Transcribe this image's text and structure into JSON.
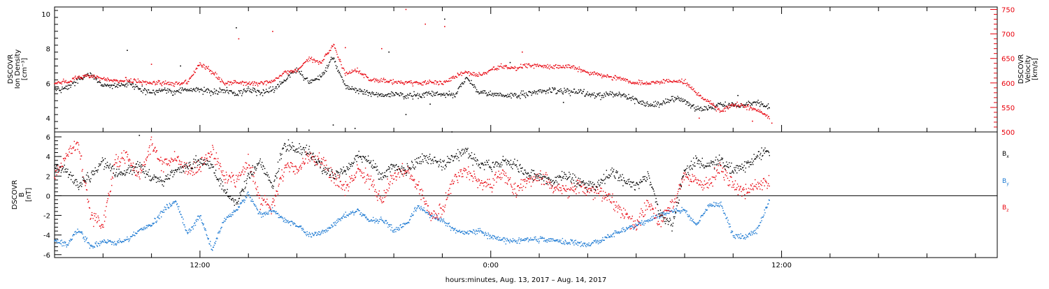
{
  "chart_data": [
    {
      "type": "scatter",
      "panel": "top",
      "ylabel_left": [
        "DSCOVR",
        "Ion Density",
        "[cm⁻³]"
      ],
      "ylabel_right": [
        "DSCOVR",
        "Velocity",
        "[km/s]"
      ],
      "ylim_left": [
        3.2,
        10.4
      ],
      "ylim_right": [
        500,
        755
      ],
      "yticks_left": [
        "4",
        "6",
        "8",
        "10"
      ],
      "yticks_left_values": [
        4,
        6,
        8,
        10
      ],
      "yticks_right": [
        "500",
        "550",
        "600",
        "650",
        "700",
        "750"
      ],
      "yticks_right_values": [
        500,
        550,
        600,
        650,
        700,
        750
      ],
      "series": [
        {
          "name": "Ion Density",
          "color": "#000000",
          "axis": "left",
          "x": [
            0,
            0.5,
            1,
            1.5,
            2,
            2.5,
            3,
            3.5,
            4,
            4.5,
            5,
            5.5,
            6,
            6.5,
            7,
            7.5,
            8,
            8.5,
            9,
            9.5,
            10,
            10.5,
            11,
            11.5,
            12,
            12.5,
            13,
            13.5,
            14,
            14.5,
            15,
            15.5,
            16,
            16.5,
            17,
            17.5,
            18,
            18.5,
            19,
            19.5,
            20,
            20.5,
            21,
            21.5,
            22,
            22.5,
            23,
            23.5,
            24,
            24.5,
            25,
            25.5,
            26,
            26.5,
            27,
            27.5,
            28,
            28.5,
            29,
            29.5
          ],
          "values": [
            5.6,
            5.7,
            6.2,
            6.5,
            5.9,
            5.8,
            6.0,
            5.7,
            5.5,
            5.6,
            5.5,
            5.7,
            5.6,
            5.5,
            5.6,
            5.4,
            5.6,
            5.5,
            5.6,
            6.2,
            6.8,
            6.0,
            6.4,
            7.5,
            5.8,
            5.6,
            5.4,
            5.3,
            5.4,
            5.3,
            5.3,
            5.4,
            5.4,
            5.3,
            6.3,
            5.5,
            5.4,
            5.3,
            5.3,
            5.4,
            5.5,
            5.6,
            5.5,
            5.5,
            5.4,
            5.3,
            5.4,
            5.3,
            5.0,
            4.8,
            4.8,
            5.1,
            5.0,
            4.5,
            4.6,
            4.8,
            4.7,
            4.8,
            4.9,
            4.6
          ]
        },
        {
          "name": "Velocity",
          "color": "#e8000b",
          "axis": "right",
          "x": [
            0,
            0.5,
            1,
            1.5,
            2,
            2.5,
            3,
            3.5,
            4,
            4.5,
            5,
            5.5,
            6,
            6.5,
            7,
            7.5,
            8,
            8.5,
            9,
            9.5,
            10,
            10.5,
            11,
            11.5,
            12,
            12.5,
            13,
            13.5,
            14,
            14.5,
            15,
            15.5,
            16,
            16.5,
            17,
            17.5,
            18,
            18.5,
            19,
            19.5,
            20,
            20.5,
            21,
            21.5,
            22,
            22.5,
            23,
            23.5,
            24,
            24.5,
            25,
            25.5,
            26,
            26.5,
            27,
            27.5,
            28,
            28.5,
            29,
            29.5
          ],
          "values": [
            600,
            603,
            612,
            615,
            608,
            605,
            606,
            602,
            600,
            600,
            598,
            602,
            640,
            622,
            600,
            602,
            598,
            600,
            602,
            622,
            625,
            650,
            640,
            678,
            618,
            626,
            607,
            604,
            602,
            600,
            600,
            602,
            601,
            612,
            622,
            615,
            628,
            633,
            630,
            636,
            635,
            632,
            634,
            630,
            622,
            616,
            612,
            606,
            600,
            600,
            602,
            604,
            603,
            578,
            562,
            540,
            556,
            552,
            545,
            530
          ]
        },
        {
          "name": "Ion Density",
          "color": "#000000",
          "axis": "left",
          "points": [
            [
              3.0,
              7.9
            ],
            [
              3.5,
              3.0
            ],
            [
              7.5,
              9.2
            ],
            [
              10.5,
              3.3
            ],
            [
              12.4,
              3.4
            ],
            [
              13.8,
              7.8
            ],
            [
              14.5,
              4.2
            ],
            [
              15.5,
              4.8
            ],
            [
              16.4,
              3.2
            ],
            [
              16.1,
              9.7
            ],
            [
              11.5,
              3.6
            ],
            [
              18.8,
              7.2
            ],
            [
              5.2,
              7.0
            ],
            [
              21.0,
              4.9
            ],
            [
              28.2,
              5.3
            ]
          ]
        },
        {
          "name": "Velocity",
          "color": "#e8000b",
          "axis": "right",
          "points": [
            [
              7.6,
              690
            ],
            [
              9.0,
              705
            ],
            [
              12.0,
              672
            ],
            [
              13.5,
              670
            ],
            [
              14.5,
              750
            ],
            [
              15.3,
              720
            ],
            [
              16.1,
              715
            ],
            [
              19.3,
              663
            ],
            [
              4.0,
              638
            ],
            [
              28.8,
              522
            ],
            [
              26.6,
              528
            ],
            [
              29.6,
              518
            ]
          ]
        }
      ]
    },
    {
      "type": "scatter",
      "panel": "bottom",
      "ylabel_left": [
        "DSCOVR",
        "B",
        "[nT]"
      ],
      "ylim": [
        -6.3,
        6.5
      ],
      "yticks": [
        "-6",
        "-4",
        "-2",
        "0",
        "2",
        "4",
        "6"
      ],
      "ytick_values": [
        -6,
        -4,
        -2,
        0,
        2,
        4,
        6
      ],
      "zero_line": true,
      "legend": [
        "Bx",
        "By",
        "Bz"
      ],
      "legend_position": "right",
      "series": [
        {
          "name": "Bx",
          "color": "#000000",
          "x": [
            0,
            0.5,
            1,
            1.5,
            2,
            2.5,
            3,
            3.5,
            4,
            4.5,
            5,
            5.5,
            6,
            6.5,
            7,
            7.5,
            8,
            8.5,
            9,
            9.5,
            10,
            10.5,
            11,
            11.5,
            12,
            12.5,
            13,
            13.5,
            14,
            14.5,
            15,
            15.5,
            16,
            16.5,
            17,
            17.5,
            18,
            18.5,
            19,
            19.5,
            20,
            20.5,
            21,
            21.5,
            22,
            22.5,
            23,
            23.5,
            24,
            24.5,
            25,
            25.5,
            26,
            26.5,
            27,
            27.5,
            28,
            28.5,
            29,
            29.5
          ],
          "values": [
            3.0,
            2.5,
            1.0,
            2.0,
            3.5,
            2.2,
            2.5,
            3.0,
            2.0,
            1.5,
            2.5,
            3.0,
            3.5,
            3.0,
            0.5,
            -1.0,
            2.0,
            3.5,
            1.0,
            5.2,
            4.8,
            4.5,
            3.0,
            2.0,
            2.5,
            4.0,
            3.5,
            2.0,
            3.0,
            2.5,
            3.5,
            4.0,
            3.0,
            4.0,
            4.6,
            3.2,
            3.0,
            3.5,
            3.2,
            2.2,
            2.0,
            1.5,
            2.0,
            1.5,
            1.0,
            1.2,
            2.5,
            1.5,
            1.0,
            2.0,
            -2.0,
            -3.0,
            2.5,
            3.5,
            3.0,
            3.6,
            2.5,
            3.0,
            4.0,
            4.7
          ]
        },
        {
          "name": "By",
          "color": "#1a78d2",
          "x": [
            0,
            0.5,
            1,
            1.5,
            2,
            2.5,
            3,
            3.5,
            4,
            4.5,
            5,
            5.5,
            6,
            6.5,
            7,
            7.5,
            8,
            8.5,
            9,
            9.5,
            10,
            10.5,
            11,
            11.5,
            12,
            12.5,
            13,
            13.5,
            14,
            14.5,
            15,
            15.5,
            16,
            16.5,
            17,
            17.5,
            18,
            18.5,
            19,
            19.5,
            20,
            20.5,
            21,
            21.5,
            22,
            22.5,
            23,
            23.5,
            24,
            24.5,
            25,
            25.5,
            26,
            26.5,
            27,
            27.5,
            28,
            28.5,
            29,
            29.5
          ],
          "values": [
            -4.5,
            -5.0,
            -3.5,
            -5.2,
            -4.6,
            -4.8,
            -4.5,
            -3.5,
            -3.0,
            -1.5,
            -0.5,
            -4.0,
            -2.0,
            -5.5,
            -2.5,
            -1.5,
            0.2,
            -2.0,
            -1.5,
            -2.5,
            -3.0,
            -4.0,
            -3.8,
            -3.0,
            -2.0,
            -1.5,
            -2.5,
            -2.5,
            -3.5,
            -3.0,
            -1.0,
            -2.0,
            -2.5,
            -3.5,
            -3.8,
            -3.5,
            -4.2,
            -4.5,
            -4.6,
            -4.4,
            -4.5,
            -4.5,
            -4.7,
            -4.8,
            -5.0,
            -4.6,
            -4.0,
            -3.5,
            -3.0,
            -2.5,
            -2.0,
            -1.5,
            -1.5,
            -3.0,
            -1.0,
            -0.8,
            -4.0,
            -4.2,
            -3.5,
            -0.5
          ]
        },
        {
          "name": "Bz",
          "color": "#e8000b",
          "x": [
            0,
            0.5,
            1,
            1.5,
            2,
            2.5,
            3,
            3.5,
            4,
            4.5,
            5,
            5.5,
            6,
            6.5,
            7,
            7.5,
            8,
            8.5,
            9,
            9.5,
            10,
            10.5,
            11,
            11.5,
            12,
            12.5,
            13,
            13.5,
            14,
            14.5,
            15,
            15.5,
            16,
            16.5,
            17,
            17.5,
            18,
            18.5,
            19,
            19.5,
            20,
            20.5,
            21,
            21.5,
            22,
            22.5,
            23,
            23.5,
            24,
            24.5,
            25,
            25.5,
            26,
            26.5,
            27,
            27.5,
            28,
            28.5,
            29,
            29.5
          ],
          "values": [
            2.0,
            4.0,
            5.2,
            -2.0,
            -3.0,
            3.5,
            4.0,
            2.0,
            5.5,
            3.0,
            4.0,
            2.5,
            3.0,
            4.5,
            2.0,
            1.5,
            3.5,
            -0.5,
            -1.0,
            3.0,
            2.5,
            4.0,
            3.5,
            2.0,
            0.5,
            2.5,
            1.5,
            -0.5,
            2.0,
            2.5,
            1.0,
            -2.0,
            -1.5,
            2.0,
            2.5,
            1.5,
            1.0,
            2.5,
            0.5,
            1.5,
            2.0,
            1.2,
            0.5,
            1.0,
            0.5,
            0.5,
            -0.5,
            -2.0,
            -3.0,
            -1.0,
            -2.5,
            -1.0,
            2.0,
            1.5,
            1.0,
            3.0,
            1.0,
            0.5,
            1.0,
            1.5
          ]
        }
      ]
    },
    {
      "type": "axis",
      "xlabel": "hours:minutes, Aug. 13, 2017 – Aug. 14, 2017",
      "xlim": [
        6,
        44.9
      ],
      "xtick_labels": [
        {
          "x": 12,
          "label": "12:00"
        },
        {
          "x": 24,
          "label": "0:00"
        },
        {
          "x": 36,
          "label": "12:00"
        }
      ],
      "x_minor_tick_step": 2
    }
  ],
  "legend": {
    "bx": {
      "main": "B",
      "sub": "x",
      "color": "#000000"
    },
    "by": {
      "main": "B",
      "sub": "y",
      "color": "#1a78d2"
    },
    "bz": {
      "main": "B",
      "sub": "z",
      "color": "#e8000b"
    }
  }
}
